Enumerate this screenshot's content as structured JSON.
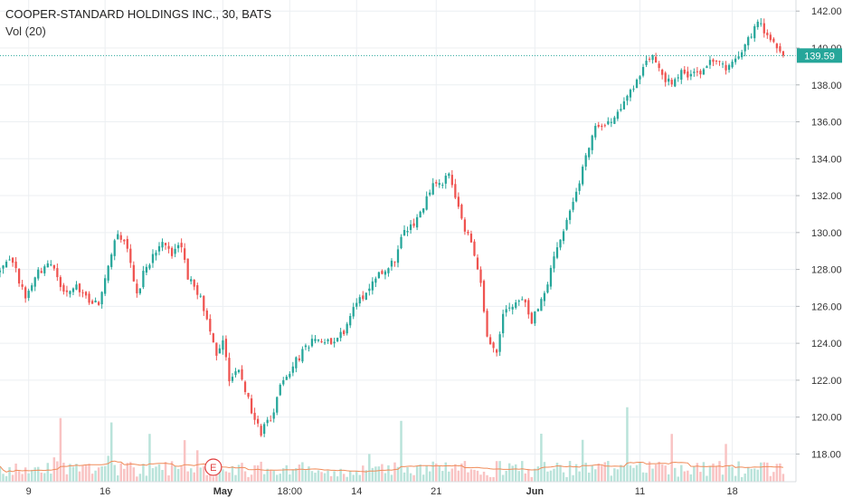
{
  "legend": {
    "symbol_line": "COOPER-STANDARD HOLDINGS INC., 30, BATS",
    "volume_line": "Vol (20)"
  },
  "colors": {
    "up": "#26a69a",
    "down": "#ef5350",
    "up_volume": "#b9e3da",
    "down_volume": "#f9c3c3",
    "ma_line": "#f08c5a",
    "grid": "#eceff2",
    "price_line": "#26a69a",
    "axis_text": "#333333",
    "earnings_marker": "#e04040"
  },
  "chart_data": {
    "type": "candlestick",
    "title": "COOPER-STANDARD HOLDINGS INC., 30, BATS",
    "interval": "30",
    "price_axis": {
      "side": "right",
      "range": [
        116.5,
        142.6
      ],
      "ticks": [
        "118.00",
        "120.00",
        "122.00",
        "124.00",
        "126.00",
        "128.00",
        "130.00",
        "132.00",
        "134.00",
        "136.00",
        "138.00",
        "140.00",
        "142.00"
      ]
    },
    "time_axis": {
      "ticks": [
        "9",
        "16",
        "May",
        "18:00",
        "14",
        "21",
        "Jun",
        "11",
        "18"
      ],
      "range": [
        0,
        250
      ]
    },
    "last_price": {
      "value": 139.59,
      "label": "139.59"
    },
    "grid": true,
    "volume_indicator": {
      "name": "Vol (20)",
      "moving_average": true
    },
    "events": [
      {
        "type": "earnings",
        "label": "E",
        "x": 67
      }
    ],
    "series": [
      {
        "name": "Price",
        "anchors": [
          [
            0,
            127.9
          ],
          [
            4,
            128.5
          ],
          [
            8,
            126.4
          ],
          [
            12,
            127.8
          ],
          [
            16,
            128.3
          ],
          [
            20,
            126.8
          ],
          [
            24,
            127.0
          ],
          [
            28,
            126.4
          ],
          [
            31,
            126.1
          ],
          [
            34,
            128.4
          ],
          [
            37,
            130.1
          ],
          [
            40,
            129.0
          ],
          [
            43,
            126.5
          ],
          [
            45,
            127.8
          ],
          [
            48,
            128.8
          ],
          [
            51,
            129.7
          ],
          [
            54,
            128.9
          ],
          [
            57,
            129.3
          ],
          [
            59,
            127.6
          ],
          [
            62,
            126.8
          ],
          [
            65,
            125.5
          ],
          [
            68,
            123.5
          ],
          [
            70,
            124.3
          ],
          [
            72,
            122.1
          ],
          [
            75,
            122.6
          ],
          [
            77,
            121.4
          ],
          [
            79,
            120.4
          ],
          [
            82,
            119.2
          ],
          [
            85,
            119.9
          ],
          [
            88,
            121.6
          ],
          [
            92,
            122.8
          ],
          [
            96,
            123.8
          ],
          [
            100,
            124.3
          ],
          [
            104,
            123.9
          ],
          [
            108,
            124.7
          ],
          [
            112,
            126.3
          ],
          [
            116,
            126.9
          ],
          [
            120,
            127.9
          ],
          [
            124,
            128.6
          ],
          [
            126,
            129.8
          ],
          [
            130,
            130.5
          ],
          [
            133,
            131.5
          ],
          [
            136,
            132.5
          ],
          [
            139,
            132.7
          ],
          [
            141,
            133.2
          ],
          [
            143,
            131.9
          ],
          [
            146,
            130.2
          ],
          [
            148,
            129.3
          ],
          [
            151,
            127.1
          ],
          [
            153,
            124.3
          ],
          [
            156,
            123.7
          ],
          [
            158,
            125.6
          ],
          [
            161,
            126.0
          ],
          [
            164,
            126.4
          ],
          [
            167,
            125.2
          ],
          [
            170,
            126.2
          ],
          [
            172,
            127.4
          ],
          [
            175,
            129.2
          ],
          [
            178,
            130.8
          ],
          [
            181,
            132.2
          ],
          [
            184,
            134.2
          ],
          [
            187,
            135.9
          ],
          [
            190,
            135.7
          ],
          [
            193,
            136.1
          ],
          [
            196,
            137.0
          ],
          [
            199,
            137.9
          ],
          [
            202,
            138.8
          ],
          [
            205,
            139.7
          ],
          [
            208,
            138.6
          ],
          [
            211,
            137.9
          ],
          [
            214,
            138.8
          ],
          [
            217,
            138.5
          ],
          [
            220,
            138.5
          ],
          [
            223,
            139.4
          ],
          [
            226,
            139.2
          ],
          [
            229,
            138.9
          ],
          [
            232,
            139.6
          ],
          [
            235,
            140.5
          ],
          [
            238,
            141.4
          ],
          [
            241,
            140.6
          ],
          [
            244,
            139.9
          ],
          [
            246,
            139.59
          ]
        ]
      }
    ]
  }
}
